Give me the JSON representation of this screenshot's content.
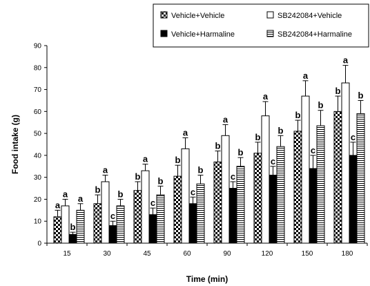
{
  "chart_data": {
    "type": "bar",
    "xlabel": "Time (min)",
    "ylabel": "Food intake (g)",
    "categories": [
      "15",
      "30",
      "45",
      "60",
      "90",
      "120",
      "150",
      "180"
    ],
    "ylim": [
      0,
      90
    ],
    "yticks": [
      0,
      10,
      20,
      30,
      40,
      50,
      60,
      70,
      80,
      90
    ],
    "grid": false,
    "legend_position": "top-right",
    "series": [
      {
        "name": "Vehicle+Vehicle",
        "pattern": "checker",
        "values": [
          12,
          18,
          24,
          30.5,
          37,
          41,
          51,
          60
        ],
        "errors": [
          3,
          4,
          4,
          5,
          5,
          5,
          5,
          7
        ],
        "labels": [
          "a",
          "b",
          "b",
          "b",
          "b",
          "b",
          "b",
          "b"
        ]
      },
      {
        "name": "SB242084+Vehicle",
        "pattern": "open",
        "values": [
          17,
          28,
          33,
          43,
          49,
          58,
          67,
          73
        ],
        "errors": [
          3,
          3,
          3,
          5,
          5,
          6.5,
          7,
          8
        ],
        "labels": [
          "a",
          "a",
          "a",
          "a",
          "a",
          "a",
          "a",
          "a"
        ]
      },
      {
        "name": "Vehicle+Harmaline",
        "pattern": "solid",
        "values": [
          4,
          8,
          13,
          18,
          25,
          31,
          34,
          40
        ],
        "errors": [
          1,
          2,
          3,
          3,
          3,
          4,
          6,
          6
        ],
        "labels": [
          "b",
          "c",
          "c",
          "c",
          "c",
          "c",
          "c",
          "c"
        ]
      },
      {
        "name": "SB242084+Harmaline",
        "pattern": "hlines",
        "values": [
          15,
          17,
          22,
          27,
          35,
          44,
          53.5,
          59
        ],
        "errors": [
          3,
          3,
          4,
          4,
          4,
          5,
          7,
          6
        ],
        "labels": [
          "a",
          "b",
          "b",
          "b",
          "b",
          "b",
          "b",
          "b"
        ]
      }
    ]
  }
}
